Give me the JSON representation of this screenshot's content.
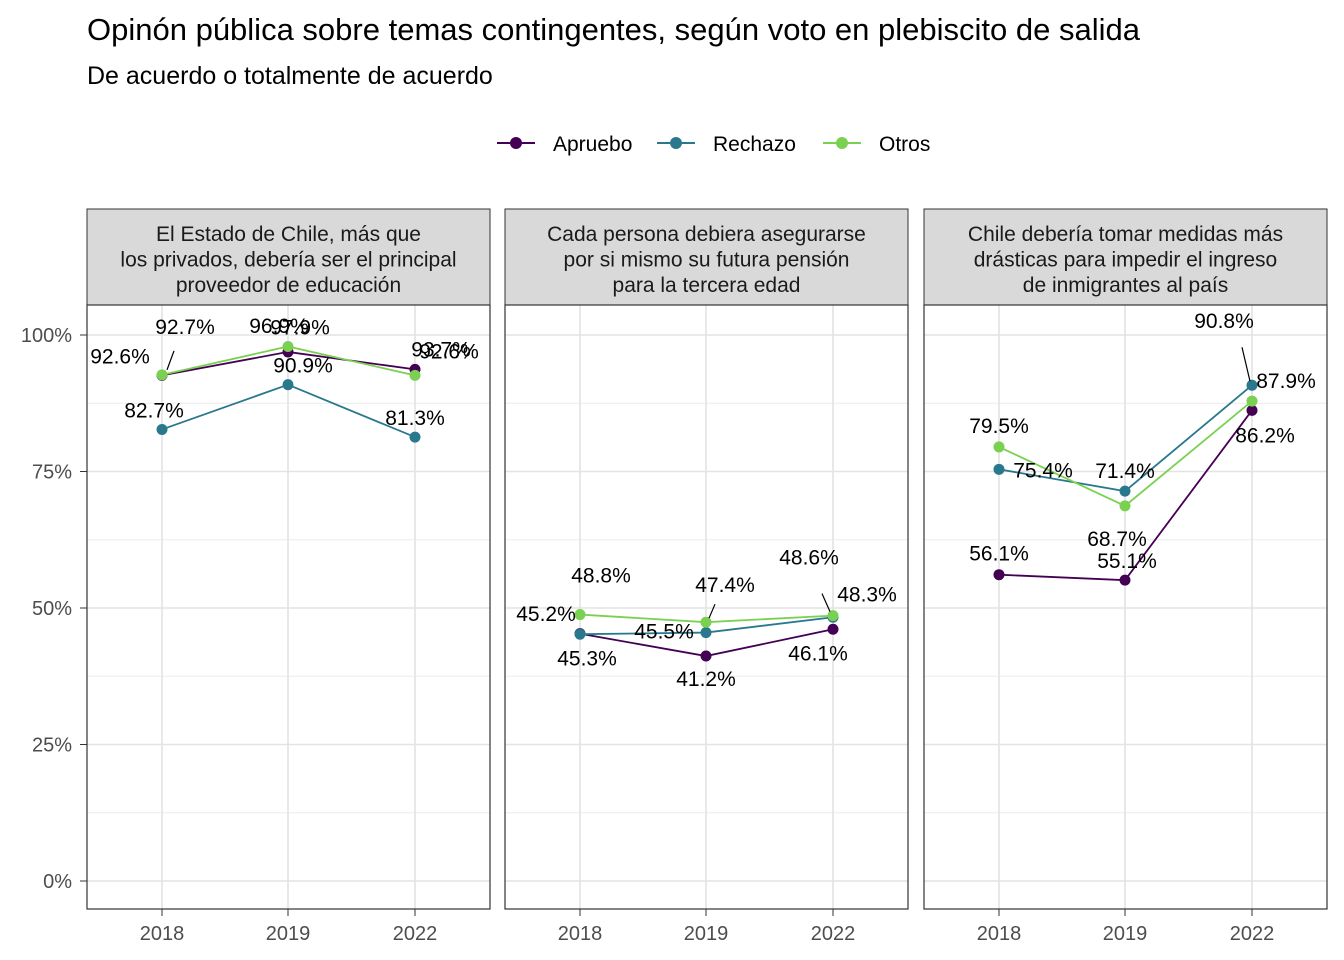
{
  "chart_data": {
    "type": "line",
    "title": "Opinón pública sobre temas contingentes, según voto en plebiscito de salida",
    "subtitle": "De acuerdo o totalmente de acuerdo",
    "x": [
      "2018",
      "2019",
      "2022"
    ],
    "ylim": [
      0,
      100
    ],
    "y_ticks": [
      "0%",
      "25%",
      "50%",
      "75%",
      "100%"
    ],
    "grid": true,
    "legend_position": "top",
    "legend": [
      "Apruebo",
      "Rechazo",
      "Otros"
    ],
    "colors": {
      "Apruebo": "#440154",
      "Rechazo": "#2a788e",
      "Otros": "#7ad151"
    },
    "panels": [
      {
        "strip": [
          "El Estado de Chile, más que",
          "los privados, debería ser el principal",
          "proveedor de educación"
        ],
        "series": [
          {
            "name": "Apruebo",
            "values": [
              92.6,
              96.9,
              93.7
            ],
            "labels": [
              "92.6%",
              "96.9%",
              "93.7%"
            ]
          },
          {
            "name": "Rechazo",
            "values": [
              82.7,
              90.9,
              81.3
            ],
            "labels": [
              "82.7%",
              "90.9%",
              "81.3%"
            ]
          },
          {
            "name": "Otros",
            "values": [
              92.7,
              97.9,
              92.6
            ],
            "labels": [
              "92.7%",
              "97.9%",
              "92.6%"
            ]
          }
        ]
      },
      {
        "strip": [
          "Cada persona debiera asegurarse",
          "por si mismo su futura pensión",
          "para la tercera edad"
        ],
        "series": [
          {
            "name": "Apruebo",
            "values": [
              45.3,
              41.2,
              46.1
            ],
            "labels": [
              "45.3%",
              "41.2%",
              "46.1%"
            ]
          },
          {
            "name": "Rechazo",
            "values": [
              45.2,
              45.5,
              48.3
            ],
            "labels": [
              "45.2%",
              "45.5%",
              "48.3%"
            ]
          },
          {
            "name": "Otros",
            "values": [
              48.8,
              47.4,
              48.6
            ],
            "labels": [
              "48.8%",
              "47.4%",
              "48.6%"
            ]
          }
        ]
      },
      {
        "strip": [
          "Chile debería tomar medidas más",
          "drásticas para impedir el ingreso",
          "de inmigrantes al país"
        ],
        "series": [
          {
            "name": "Apruebo",
            "values": [
              56.1,
              55.1,
              86.2
            ],
            "labels": [
              "56.1%",
              "55.1%",
              "86.2%"
            ]
          },
          {
            "name": "Rechazo",
            "values": [
              75.4,
              71.4,
              90.8
            ],
            "labels": [
              "75.4%",
              "71.4%",
              "90.8%"
            ]
          },
          {
            "name": "Otros",
            "values": [
              79.5,
              68.7,
              87.9
            ],
            "labels": [
              "79.5%",
              "68.7%",
              "87.9%"
            ]
          }
        ]
      }
    ]
  }
}
